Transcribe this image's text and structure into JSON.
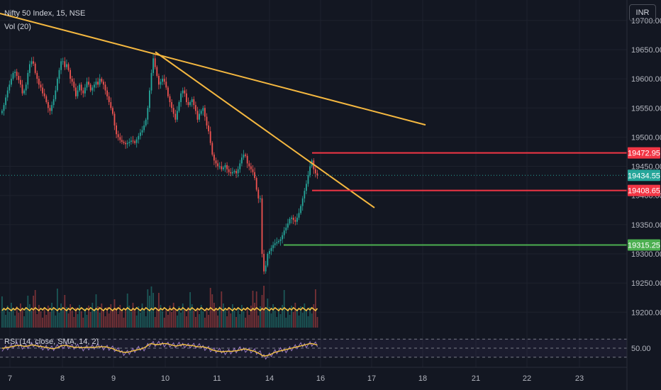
{
  "header": {
    "symbol": "Nifty 50 Index, 15, NSE",
    "volume": "Vol (20)",
    "rsi": "RSI (14, close, SMA, 14, 2)",
    "currency": "INR"
  },
  "colors": {
    "background": "#131722",
    "grid": "#1e222d",
    "up": "#26a69a",
    "down": "#ef5350",
    "trendline": "#f5b840",
    "resistance": "#f23645",
    "support": "#4caf50",
    "rsi": "#9c7ac2",
    "rsi_sma": "#f5c242"
  },
  "chart_data": {
    "type": "candlestick",
    "x_ticks": [
      "7",
      "8",
      "9",
      "10",
      "11",
      "14",
      "16",
      "17",
      "18",
      "21",
      "22",
      "23"
    ],
    "y_ticks": [
      "19200.00",
      "19250.00",
      "19300.00",
      "19350.00",
      "19400.00",
      "19450.00",
      "19500.00",
      "19550.00",
      "19600.00",
      "19650.00",
      "19700.00"
    ],
    "ylim": [
      19170,
      19735
    ],
    "price_tags": [
      {
        "label": "19472.95",
        "value": 19472.95,
        "kind": "resistance"
      },
      {
        "label": "19434.55",
        "value": 19434.55,
        "kind": "current"
      },
      {
        "label": "19408.65",
        "value": 19408.65,
        "kind": "resistance"
      },
      {
        "label": "19315.25",
        "value": 19315.25,
        "kind": "support"
      }
    ],
    "trendlines": [
      {
        "from": [
          "7",
          19712
        ],
        "to": [
          "18",
          19521
        ]
      },
      {
        "from": [
          "10",
          19646
        ],
        "to": [
          "17",
          19379
        ]
      }
    ],
    "horizontal_lines": [
      19472.95,
      19408.65,
      19315.25
    ],
    "rsi_ticks": [
      "50.00"
    ],
    "series_close": [
      19545,
      19555,
      19568,
      19580,
      19590,
      19600,
      19610,
      19612,
      19605,
      19598,
      19590,
      19575,
      19580,
      19590,
      19610,
      19625,
      19630,
      19626,
      19610,
      19600,
      19590,
      19585,
      19575,
      19570,
      19560,
      19550,
      19545,
      19555,
      19565,
      19580,
      19600,
      19615,
      19630,
      19630,
      19620,
      19625,
      19615,
      19600,
      19595,
      19585,
      19570,
      19580,
      19590,
      19580,
      19575,
      19585,
      19595,
      19590,
      19580,
      19585,
      19590,
      19595,
      19590,
      19600,
      19595,
      19590,
      19580,
      19570,
      19560,
      19550,
      19540,
      19520,
      19505,
      19500,
      19495,
      19492,
      19490,
      19488,
      19490,
      19492,
      19494,
      19493,
      19490,
      19496,
      19502,
      19508,
      19512,
      19520,
      19530,
      19550,
      19580,
      19610,
      19635,
      19620,
      19605,
      19590,
      19595,
      19600,
      19595,
      19585,
      19570,
      19560,
      19550,
      19540,
      19530,
      19545,
      19560,
      19575,
      19580,
      19575,
      19560,
      19555,
      19560,
      19565,
      19555,
      19545,
      19530,
      19540,
      19545,
      19550,
      19535,
      19520,
      19510,
      19490,
      19470,
      19460,
      19455,
      19450,
      19450,
      19445,
      19448,
      19452,
      19445,
      19440,
      19438,
      19440,
      19442,
      19438,
      19445,
      19455,
      19465,
      19470,
      19468,
      19455,
      19450,
      19445,
      19440,
      19430,
      19410,
      19395,
      19395,
      19300,
      19270,
      19280,
      19300,
      19305,
      19310,
      19315,
      19318,
      19320,
      19322,
      19325,
      19332,
      19340,
      19345,
      19352,
      19360,
      19362,
      19358,
      19355,
      19362,
      19370,
      19382,
      19395,
      19408,
      19420,
      19435,
      19450,
      19460,
      19445,
      19438,
      19434.55
    ],
    "rsi_sma_values": [
      50,
      50,
      51,
      52,
      52,
      53,
      54,
      55,
      56,
      56,
      56,
      55,
      54,
      54,
      55,
      56,
      57,
      57,
      56,
      55,
      54,
      54,
      53,
      52,
      52,
      51,
      50,
      49,
      49,
      50,
      51,
      53,
      55,
      56,
      56,
      56,
      55,
      54,
      53,
      52,
      52,
      52,
      52,
      51,
      51,
      52,
      52,
      52,
      52,
      52,
      52,
      52,
      53,
      53,
      53,
      53,
      53,
      52,
      51,
      50,
      49,
      47,
      45,
      44,
      43,
      42,
      41,
      41,
      41,
      42,
      43,
      44,
      45,
      46,
      47,
      48,
      49,
      51,
      53,
      56,
      59,
      60,
      59,
      58,
      58,
      58,
      59,
      60,
      60,
      60,
      59,
      58,
      57,
      56,
      55,
      55,
      56,
      57,
      58,
      58,
      57,
      56,
      56,
      56,
      55,
      54,
      53,
      53,
      53,
      53,
      52,
      51,
      50,
      48,
      46,
      45,
      44,
      43,
      43,
      42,
      42,
      43,
      43,
      43,
      43,
      43,
      44,
      44,
      45,
      46,
      47,
      48,
      48,
      47,
      46,
      45,
      44,
      43,
      41,
      39,
      37,
      34,
      33,
      33,
      34,
      35,
      37,
      39,
      41,
      42,
      43,
      44,
      45,
      46,
      47,
      48,
      49,
      50,
      51,
      52,
      53,
      54,
      55,
      56,
      57,
      58,
      59,
      60,
      60,
      59,
      58,
      57
    ]
  }
}
